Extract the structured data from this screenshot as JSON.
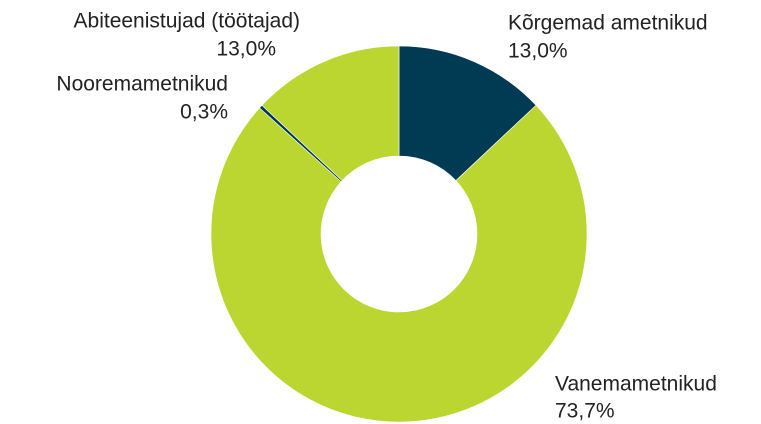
{
  "chart_data": {
    "type": "donut",
    "categories": [
      "Kõrgemad ametnikud",
      "Vanemametnikud",
      "Nooremametnikud",
      "Abiteenistujad (töötajad)"
    ],
    "values": [
      13.0,
      73.7,
      0.3,
      13.0
    ],
    "value_labels": [
      "13,0%",
      "73,7%",
      "0,3%",
      "13,0%"
    ],
    "colors": [
      "#003a53",
      "#bcd631",
      "#003a53",
      "#bcd631"
    ]
  }
}
